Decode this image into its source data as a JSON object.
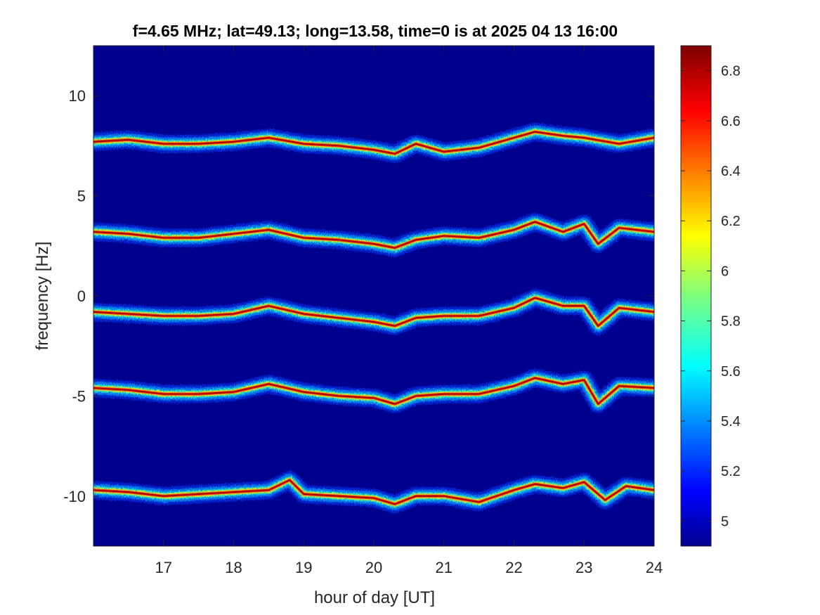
{
  "chart_data": {
    "type": "heatmap",
    "title": "f=4.65 MHz;  lat=49.13; long=13.58, time=0 is at 2025 04 13 16:00",
    "xlabel": "hour of day [UT]",
    "ylabel": "frequency [Hz]",
    "xlim": [
      16,
      24
    ],
    "ylim": [
      -12.5,
      12.5
    ],
    "x_ticks": [
      17,
      18,
      19,
      20,
      21,
      22,
      23,
      24
    ],
    "y_ticks": [
      -10,
      -5,
      0,
      5,
      10
    ],
    "x_tick_labels": [
      "17",
      "18",
      "19",
      "20",
      "21",
      "22",
      "23",
      "24"
    ],
    "y_tick_labels": [
      "-10",
      "-5",
      "0",
      "5",
      "10"
    ],
    "colormap": "jet",
    "background_color": "#00008f",
    "colorbar": {
      "range": [
        4.9,
        6.9
      ],
      "ticks": [
        5,
        5.2,
        5.4,
        5.6,
        5.8,
        6,
        6.2,
        6.4,
        6.6,
        6.8
      ],
      "tick_labels": [
        "5",
        "5.2",
        "5.4",
        "5.6",
        "5.8",
        "6",
        "6.2",
        "6.4",
        "6.6",
        "6.8"
      ]
    },
    "grid": false,
    "traces": [
      {
        "x": [
          16.0,
          16.5,
          17.0,
          17.5,
          18.0,
          18.5,
          19.0,
          19.5,
          20.0,
          20.3,
          20.6,
          21.0,
          21.5,
          22.0,
          22.3,
          22.7,
          23.0,
          23.5,
          24.0
        ],
        "y": [
          7.7,
          7.8,
          7.6,
          7.6,
          7.7,
          7.9,
          7.6,
          7.5,
          7.3,
          7.1,
          7.6,
          7.2,
          7.4,
          7.9,
          8.2,
          8.0,
          7.9,
          7.6,
          7.9
        ]
      },
      {
        "x": [
          16.0,
          16.5,
          17.0,
          17.5,
          18.0,
          18.5,
          19.0,
          19.5,
          20.0,
          20.3,
          20.6,
          21.0,
          21.5,
          22.0,
          22.3,
          22.7,
          23.0,
          23.2,
          23.5,
          24.0
        ],
        "y": [
          3.2,
          3.1,
          2.9,
          2.9,
          3.1,
          3.3,
          2.9,
          2.8,
          2.6,
          2.4,
          2.8,
          3.0,
          2.9,
          3.3,
          3.7,
          3.2,
          3.6,
          2.6,
          3.4,
          3.2
        ]
      },
      {
        "x": [
          16.0,
          16.5,
          17.0,
          17.5,
          18.0,
          18.5,
          19.0,
          19.5,
          20.0,
          20.3,
          20.6,
          21.0,
          21.5,
          22.0,
          22.3,
          22.7,
          23.0,
          23.2,
          23.5,
          24.0
        ],
        "y": [
          -0.8,
          -0.9,
          -1.0,
          -1.0,
          -0.9,
          -0.5,
          -0.9,
          -1.1,
          -1.3,
          -1.5,
          -1.1,
          -1.0,
          -1.0,
          -0.6,
          -0.1,
          -0.5,
          -0.5,
          -1.5,
          -0.6,
          -0.8
        ]
      },
      {
        "x": [
          16.0,
          16.5,
          17.0,
          17.5,
          18.0,
          18.5,
          19.0,
          19.5,
          20.0,
          20.3,
          20.6,
          21.0,
          21.5,
          22.0,
          22.3,
          22.7,
          23.0,
          23.2,
          23.5,
          24.0
        ],
        "y": [
          -4.6,
          -4.7,
          -4.9,
          -4.9,
          -4.8,
          -4.4,
          -4.8,
          -5.0,
          -5.1,
          -5.4,
          -5.0,
          -4.9,
          -4.9,
          -4.5,
          -4.1,
          -4.4,
          -4.2,
          -5.4,
          -4.5,
          -4.6
        ]
      },
      {
        "x": [
          16.0,
          16.5,
          17.0,
          17.5,
          18.0,
          18.5,
          18.8,
          19.0,
          19.5,
          20.0,
          20.3,
          20.6,
          21.0,
          21.5,
          22.0,
          22.3,
          22.7,
          23.0,
          23.3,
          23.6,
          24.0
        ],
        "y": [
          -9.7,
          -9.8,
          -10.0,
          -9.9,
          -9.8,
          -9.7,
          -9.2,
          -9.9,
          -10.0,
          -10.1,
          -10.4,
          -10.0,
          -10.0,
          -10.3,
          -9.7,
          -9.4,
          -9.6,
          -9.3,
          -10.2,
          -9.5,
          -9.7
        ]
      }
    ]
  }
}
